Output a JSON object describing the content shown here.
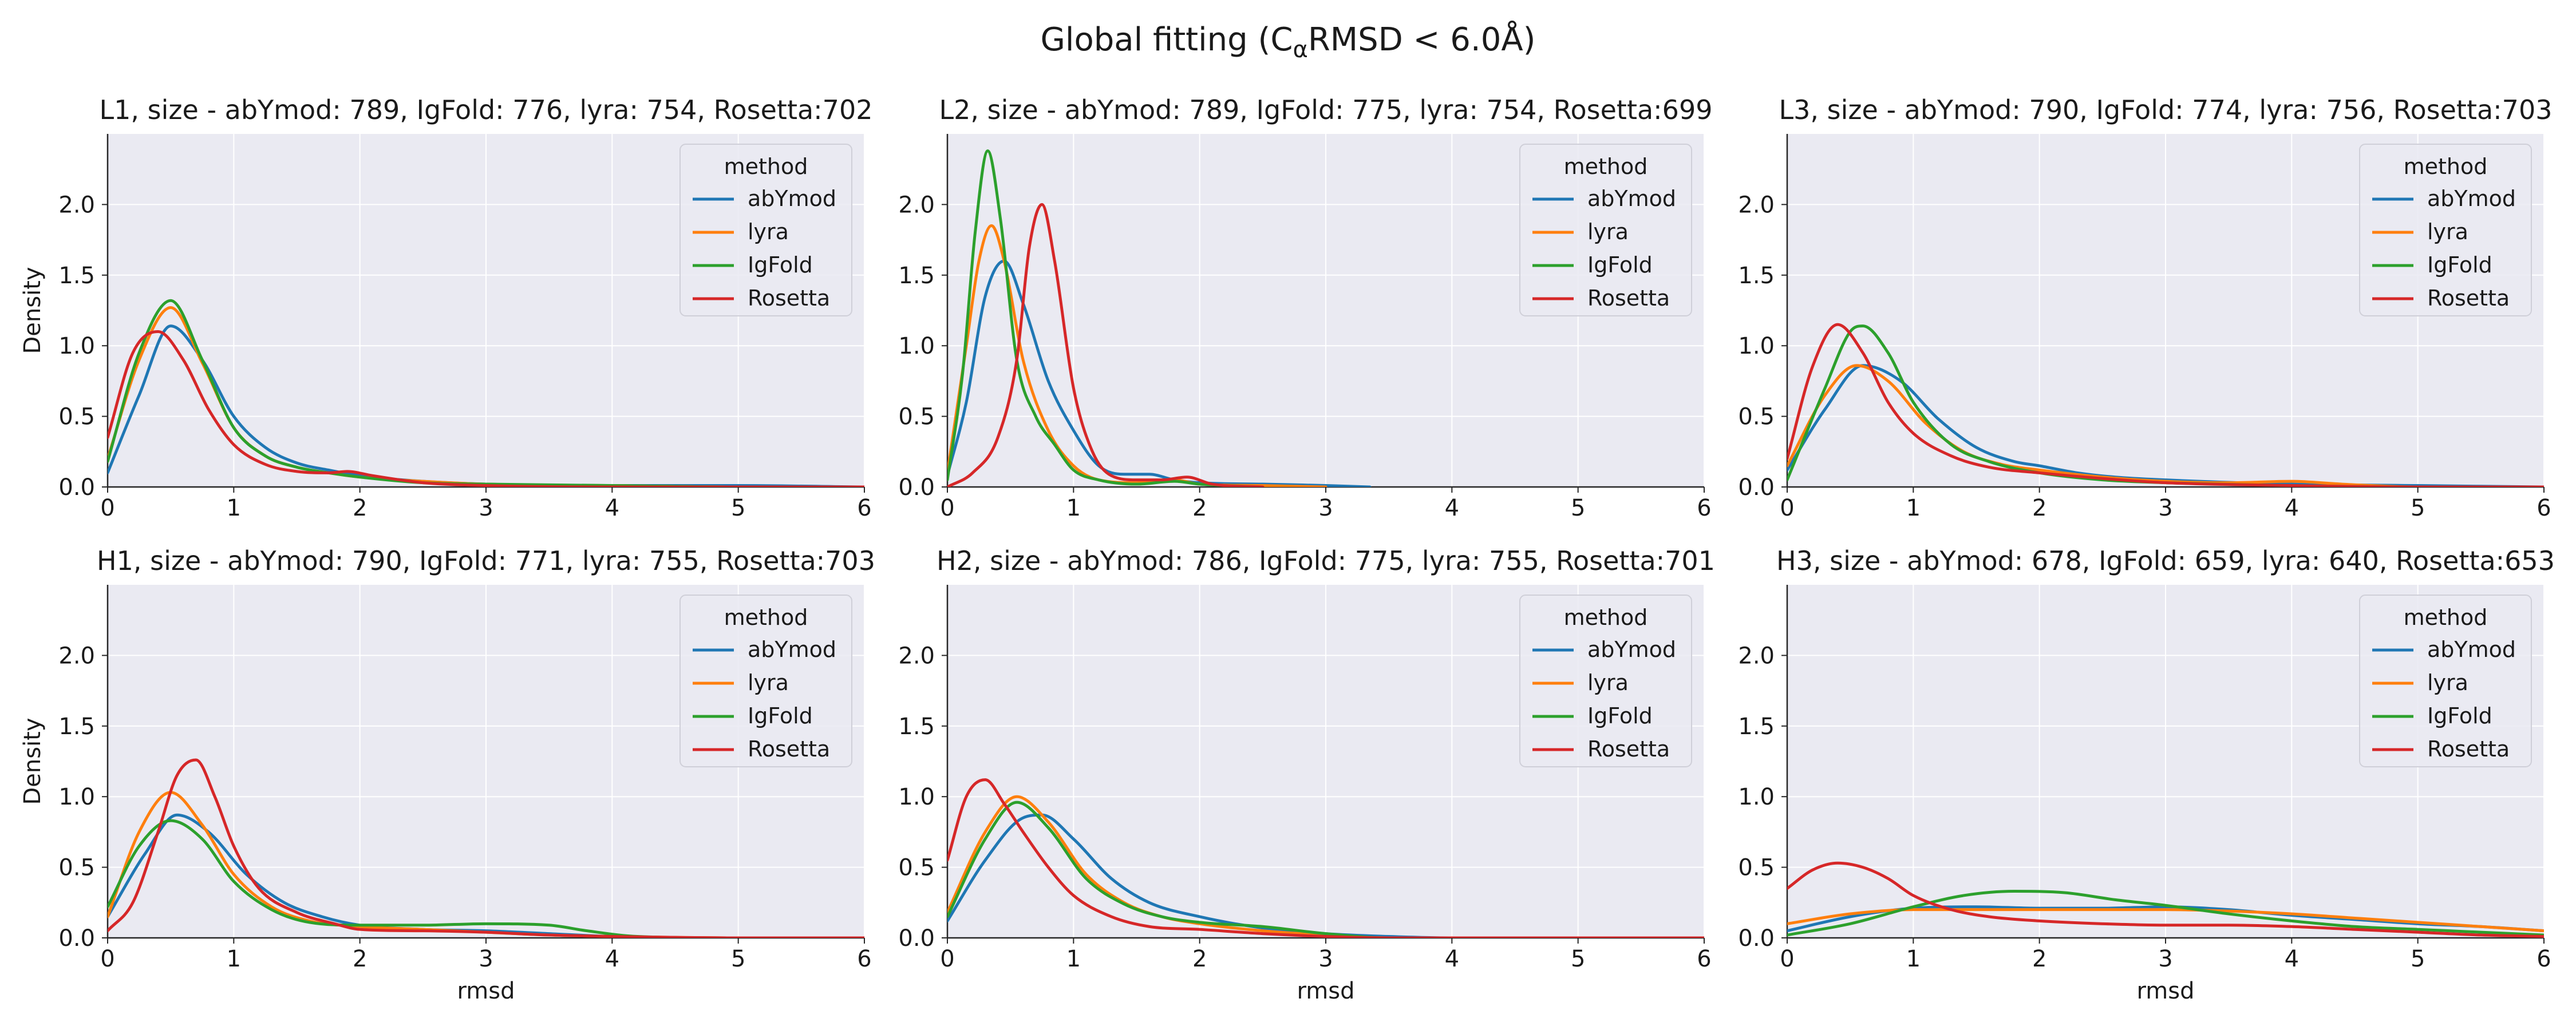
{
  "figure": {
    "title_main": "Global fitting (C",
    "title_sub": "α",
    "title_rest": "RMSD  < 6.0Å)"
  },
  "colors": {
    "abYmod": "#1f77b4",
    "lyra": "#ff7f0e",
    "IgFold": "#2ca02c",
    "Rosetta": "#d62728",
    "panel_bg": "#eaeaf2",
    "grid": "#ffffff"
  },
  "chart_data": [
    {
      "type": "line",
      "title": "L1, size - abYmod: 789, IgFold: 776, lyra: 754, Rosetta:702",
      "xlabel": "",
      "ylabel": "Density",
      "xlim": [
        0,
        6
      ],
      "ylim": [
        0,
        2.5
      ],
      "xticks": [
        0,
        1,
        2,
        3,
        4,
        5,
        6
      ],
      "yticks": [
        0.0,
        0.5,
        1.0,
        1.5,
        2.0
      ],
      "legend": {
        "title": "method",
        "position": "upper-right",
        "entries": [
          "abYmod",
          "lyra",
          "IgFold",
          "Rosetta"
        ]
      },
      "series": [
        {
          "name": "abYmod",
          "x": [
            0,
            0.25,
            0.5,
            0.75,
            1,
            1.25,
            1.5,
            1.75,
            2,
            2.5,
            3,
            4,
            5,
            6
          ],
          "y": [
            0.1,
            0.65,
            1.14,
            0.9,
            0.5,
            0.28,
            0.17,
            0.12,
            0.08,
            0.04,
            0.02,
            0.01,
            0.01,
            0.0
          ]
        },
        {
          "name": "lyra",
          "x": [
            0,
            0.25,
            0.5,
            0.75,
            1,
            1.25,
            1.5,
            1.75,
            2,
            2.5,
            3,
            4,
            5,
            6
          ],
          "y": [
            0.2,
            0.9,
            1.27,
            0.88,
            0.42,
            0.22,
            0.14,
            0.1,
            0.07,
            0.04,
            0.02,
            0.01,
            0.0,
            0.0
          ]
        },
        {
          "name": "IgFold",
          "x": [
            0,
            0.25,
            0.5,
            0.75,
            1,
            1.25,
            1.5,
            1.75,
            2,
            2.5,
            3,
            4,
            5,
            6
          ],
          "y": [
            0.18,
            0.95,
            1.32,
            0.9,
            0.42,
            0.22,
            0.14,
            0.1,
            0.07,
            0.03,
            0.02,
            0.01,
            0.0,
            0.0
          ]
        },
        {
          "name": "Rosetta",
          "x": [
            0,
            0.2,
            0.4,
            0.6,
            0.8,
            1,
            1.25,
            1.5,
            1.75,
            1.9,
            2.1,
            2.5,
            3,
            4,
            5,
            6
          ],
          "y": [
            0.35,
            0.95,
            1.1,
            0.9,
            0.55,
            0.3,
            0.16,
            0.11,
            0.1,
            0.11,
            0.08,
            0.03,
            0.01,
            0.0,
            0.0,
            0.0
          ]
        }
      ]
    },
    {
      "type": "line",
      "title": "L2, size - abYmod: 789, IgFold: 775, lyra: 754, Rosetta:699",
      "xlabel": "",
      "ylabel": "",
      "xlim": [
        0,
        6
      ],
      "ylim": [
        0,
        2.5
      ],
      "xticks": [
        0,
        1,
        2,
        3,
        4,
        5,
        6
      ],
      "yticks": [
        0.0,
        0.5,
        1.0,
        1.5,
        2.0
      ],
      "legend": {
        "title": "method",
        "position": "upper-right",
        "entries": [
          "abYmod",
          "lyra",
          "IgFold",
          "Rosetta"
        ]
      },
      "series": [
        {
          "name": "abYmod",
          "x": [
            0,
            0.15,
            0.3,
            0.45,
            0.6,
            0.8,
            1,
            1.2,
            1.4,
            1.6,
            1.8,
            2,
            2.5,
            3,
            3.35
          ],
          "y": [
            0.08,
            0.6,
            1.35,
            1.6,
            1.3,
            0.75,
            0.4,
            0.15,
            0.09,
            0.09,
            0.05,
            0.03,
            0.02,
            0.01,
            0.0
          ]
        },
        {
          "name": "lyra",
          "x": [
            0,
            0.15,
            0.25,
            0.35,
            0.45,
            0.6,
            0.8,
            1,
            1.2,
            1.5,
            1.8,
            2,
            2.5,
            3
          ],
          "y": [
            0.1,
            1.0,
            1.6,
            1.85,
            1.6,
            0.9,
            0.4,
            0.15,
            0.05,
            0.03,
            0.05,
            0.02,
            0.01,
            0.0
          ]
        },
        {
          "name": "IgFold",
          "x": [
            0,
            0.12,
            0.22,
            0.32,
            0.42,
            0.55,
            0.7,
            0.85,
            1,
            1.2,
            1.5,
            1.8,
            2,
            2.5
          ],
          "y": [
            0.05,
            0.8,
            1.8,
            2.38,
            1.9,
            0.9,
            0.5,
            0.3,
            0.12,
            0.05,
            0.02,
            0.04,
            0.02,
            0.0
          ]
        },
        {
          "name": "Rosetta",
          "x": [
            0,
            0.2,
            0.4,
            0.55,
            0.65,
            0.75,
            0.85,
            1,
            1.15,
            1.3,
            1.5,
            1.7,
            1.9,
            2.1,
            2.5
          ],
          "y": [
            0.0,
            0.1,
            0.35,
            0.9,
            1.7,
            2.0,
            1.6,
            0.7,
            0.25,
            0.08,
            0.05,
            0.05,
            0.07,
            0.02,
            0.0
          ]
        }
      ]
    },
    {
      "type": "line",
      "title": "L3, size - abYmod: 790, IgFold: 774, lyra: 756, Rosetta:703",
      "xlabel": "",
      "ylabel": "",
      "xlim": [
        0,
        6
      ],
      "ylim": [
        0,
        2.5
      ],
      "xticks": [
        0,
        1,
        2,
        3,
        4,
        5,
        6
      ],
      "yticks": [
        0.0,
        0.5,
        1.0,
        1.5,
        2.0
      ],
      "legend": {
        "title": "method",
        "position": "upper-right",
        "entries": [
          "abYmod",
          "lyra",
          "IgFold",
          "Rosetta"
        ]
      },
      "series": [
        {
          "name": "abYmod",
          "x": [
            0,
            0.3,
            0.6,
            0.9,
            1.2,
            1.5,
            1.8,
            2,
            2.3,
            2.6,
            3,
            4,
            5,
            6
          ],
          "y": [
            0.12,
            0.55,
            0.86,
            0.75,
            0.48,
            0.28,
            0.18,
            0.15,
            0.1,
            0.07,
            0.05,
            0.02,
            0.01,
            0.0
          ]
        },
        {
          "name": "lyra",
          "x": [
            0,
            0.3,
            0.55,
            0.8,
            1.1,
            1.4,
            1.7,
            2,
            2.5,
            3,
            3.5,
            4,
            4.4,
            5,
            6
          ],
          "y": [
            0.15,
            0.65,
            0.86,
            0.75,
            0.45,
            0.25,
            0.16,
            0.12,
            0.07,
            0.04,
            0.03,
            0.04,
            0.02,
            0.0,
            0.0
          ]
        },
        {
          "name": "IgFold",
          "x": [
            0,
            0.3,
            0.5,
            0.6,
            0.8,
            1,
            1.3,
            1.6,
            2,
            2.5,
            3,
            4,
            5,
            6
          ],
          "y": [
            0.05,
            0.7,
            1.1,
            1.14,
            0.95,
            0.6,
            0.3,
            0.18,
            0.1,
            0.05,
            0.03,
            0.01,
            0.0,
            0.0
          ]
        },
        {
          "name": "Rosetta",
          "x": [
            0,
            0.2,
            0.4,
            0.6,
            0.8,
            1,
            1.3,
            1.6,
            2,
            2.5,
            3,
            4,
            5,
            6
          ],
          "y": [
            0.2,
            0.85,
            1.15,
            0.95,
            0.6,
            0.38,
            0.22,
            0.14,
            0.1,
            0.06,
            0.03,
            0.01,
            0.0,
            0.0
          ]
        }
      ]
    },
    {
      "type": "line",
      "title": "H1, size - abYmod: 790, IgFold: 771, lyra: 755, Rosetta:703",
      "xlabel": "rmsd",
      "ylabel": "Density",
      "xlim": [
        0,
        6
      ],
      "ylim": [
        0,
        2.5
      ],
      "xticks": [
        0,
        1,
        2,
        3,
        4,
        5,
        6
      ],
      "yticks": [
        0.0,
        0.5,
        1.0,
        1.5,
        2.0
      ],
      "legend": {
        "title": "method",
        "position": "upper-right",
        "entries": [
          "abYmod",
          "lyra",
          "IgFold",
          "Rosetta"
        ]
      },
      "series": [
        {
          "name": "abYmod",
          "x": [
            0,
            0.3,
            0.55,
            0.8,
            1.1,
            1.4,
            1.7,
            2,
            2.5,
            3,
            3.5,
            4,
            5,
            6
          ],
          "y": [
            0.15,
            0.6,
            0.87,
            0.75,
            0.45,
            0.25,
            0.15,
            0.09,
            0.06,
            0.05,
            0.03,
            0.01,
            0.0,
            0.0
          ]
        },
        {
          "name": "lyra",
          "x": [
            0,
            0.25,
            0.5,
            0.75,
            1,
            1.3,
            1.6,
            2,
            2.5,
            3,
            3.5,
            4,
            5,
            6
          ],
          "y": [
            0.15,
            0.75,
            1.03,
            0.8,
            0.45,
            0.22,
            0.12,
            0.08,
            0.06,
            0.04,
            0.02,
            0.01,
            0.0,
            0.0
          ]
        },
        {
          "name": "IgFold",
          "x": [
            0,
            0.25,
            0.5,
            0.75,
            1,
            1.3,
            1.6,
            2,
            2.5,
            3,
            3.5,
            3.8,
            4.2,
            5,
            6
          ],
          "y": [
            0.22,
            0.65,
            0.83,
            0.7,
            0.4,
            0.2,
            0.11,
            0.09,
            0.09,
            0.1,
            0.09,
            0.05,
            0.01,
            0.0,
            0.0
          ]
        },
        {
          "name": "Rosetta",
          "x": [
            0,
            0.2,
            0.4,
            0.55,
            0.7,
            0.85,
            1,
            1.2,
            1.5,
            1.8,
            2,
            2.5,
            3,
            3.5,
            4,
            5,
            6
          ],
          "y": [
            0.05,
            0.25,
            0.75,
            1.15,
            1.26,
            1.0,
            0.65,
            0.35,
            0.18,
            0.1,
            0.06,
            0.05,
            0.04,
            0.02,
            0.01,
            0.0,
            0.0
          ]
        }
      ]
    },
    {
      "type": "line",
      "title": "H2, size - abYmod: 786, IgFold: 775, lyra: 755, Rosetta:701",
      "xlabel": "rmsd",
      "ylabel": "",
      "xlim": [
        0,
        6
      ],
      "ylim": [
        0,
        2.5
      ],
      "xticks": [
        0,
        1,
        2,
        3,
        4,
        5,
        6
      ],
      "yticks": [
        0.0,
        0.5,
        1.0,
        1.5,
        2.0
      ],
      "legend": {
        "title": "method",
        "position": "upper-right",
        "entries": [
          "abYmod",
          "lyra",
          "IgFold",
          "Rosetta"
        ]
      },
      "series": [
        {
          "name": "abYmod",
          "x": [
            0,
            0.3,
            0.6,
            0.75,
            1,
            1.3,
            1.6,
            2,
            2.5,
            3,
            3.5,
            4,
            5,
            6
          ],
          "y": [
            0.12,
            0.55,
            0.85,
            0.87,
            0.7,
            0.42,
            0.25,
            0.15,
            0.07,
            0.03,
            0.01,
            0.0,
            0.0,
            0.0
          ]
        },
        {
          "name": "lyra",
          "x": [
            0,
            0.3,
            0.55,
            0.8,
            1.1,
            1.4,
            1.7,
            2,
            2.5,
            3,
            3.5,
            4,
            5,
            6
          ],
          "y": [
            0.18,
            0.75,
            1.0,
            0.82,
            0.45,
            0.25,
            0.15,
            0.1,
            0.05,
            0.02,
            0.0,
            0.0,
            0.0,
            0.0
          ]
        },
        {
          "name": "IgFold",
          "x": [
            0,
            0.3,
            0.55,
            0.8,
            1.1,
            1.4,
            1.7,
            2,
            2.5,
            3,
            3.5,
            4,
            5,
            6
          ],
          "y": [
            0.15,
            0.7,
            0.96,
            0.78,
            0.42,
            0.24,
            0.15,
            0.11,
            0.08,
            0.03,
            0.0,
            0.0,
            0.0,
            0.0
          ]
        },
        {
          "name": "Rosetta",
          "x": [
            0,
            0.15,
            0.3,
            0.45,
            0.6,
            0.8,
            1,
            1.3,
            1.6,
            2,
            2.5,
            3,
            3.5,
            4,
            5,
            6
          ],
          "y": [
            0.55,
            1.0,
            1.12,
            0.95,
            0.75,
            0.5,
            0.3,
            0.15,
            0.08,
            0.06,
            0.03,
            0.01,
            0.0,
            0.0,
            0.0,
            0.0
          ]
        }
      ]
    },
    {
      "type": "line",
      "title": "H3, size - abYmod: 678, IgFold: 659, lyra: 640, Rosetta:653",
      "xlabel": "rmsd",
      "ylabel": "",
      "xlim": [
        0,
        6
      ],
      "ylim": [
        0,
        2.5
      ],
      "xticks": [
        0,
        1,
        2,
        3,
        4,
        5,
        6
      ],
      "yticks": [
        0.0,
        0.5,
        1.0,
        1.5,
        2.0
      ],
      "legend": {
        "title": "method",
        "position": "upper-right",
        "entries": [
          "abYmod",
          "lyra",
          "IgFold",
          "Rosetta"
        ]
      },
      "series": [
        {
          "name": "abYmod",
          "x": [
            0,
            0.5,
            1,
            1.5,
            2,
            2.5,
            3,
            3.5,
            4,
            4.5,
            5,
            5.5,
            6
          ],
          "y": [
            0.05,
            0.15,
            0.21,
            0.22,
            0.21,
            0.21,
            0.22,
            0.2,
            0.16,
            0.13,
            0.1,
            0.08,
            0.05
          ]
        },
        {
          "name": "lyra",
          "x": [
            0,
            0.5,
            1,
            1.5,
            2,
            2.5,
            3,
            3.5,
            4,
            4.5,
            5,
            5.5,
            6
          ],
          "y": [
            0.1,
            0.17,
            0.2,
            0.2,
            0.2,
            0.2,
            0.2,
            0.19,
            0.17,
            0.14,
            0.11,
            0.08,
            0.05
          ]
        },
        {
          "name": "IgFold",
          "x": [
            0,
            0.5,
            1,
            1.4,
            1.8,
            2.2,
            2.6,
            3,
            3.5,
            4,
            4.5,
            5,
            5.5,
            6
          ],
          "y": [
            0.02,
            0.1,
            0.22,
            0.3,
            0.33,
            0.32,
            0.27,
            0.23,
            0.17,
            0.12,
            0.08,
            0.06,
            0.04,
            0.02
          ]
        },
        {
          "name": "Rosetta",
          "x": [
            0,
            0.2,
            0.4,
            0.6,
            0.8,
            1,
            1.3,
            1.6,
            2,
            2.5,
            3,
            3.5,
            4,
            4.5,
            5,
            5.5,
            6
          ],
          "y": [
            0.35,
            0.48,
            0.53,
            0.5,
            0.42,
            0.3,
            0.2,
            0.15,
            0.12,
            0.1,
            0.09,
            0.09,
            0.08,
            0.06,
            0.04,
            0.02,
            0.01
          ]
        }
      ]
    }
  ]
}
